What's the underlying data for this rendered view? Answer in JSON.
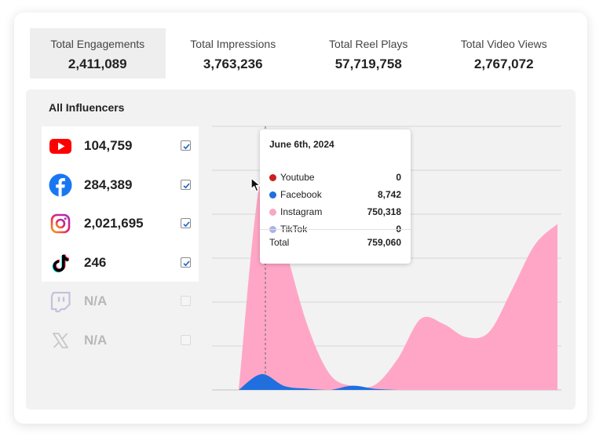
{
  "stats": [
    {
      "label": "Total Engagements",
      "value": "2,411,089"
    },
    {
      "label": "Total Impressions",
      "value": "3,763,236"
    },
    {
      "label": "Total Reel Plays",
      "value": "57,719,758"
    },
    {
      "label": "Total Video Views",
      "value": "2,767,072"
    }
  ],
  "panel": {
    "title": "All Influencers"
  },
  "platforms": [
    {
      "name": "youtube-icon",
      "value": "104,759",
      "checked": true
    },
    {
      "name": "facebook-icon",
      "value": "284,389",
      "checked": true
    },
    {
      "name": "instagram-icon",
      "value": "2,021,695",
      "checked": true
    },
    {
      "name": "tiktok-icon",
      "value": "246",
      "checked": true
    },
    {
      "name": "twitch-icon",
      "value": "N/A",
      "checked": false
    },
    {
      "name": "x-icon",
      "value": "N/A",
      "checked": false
    }
  ],
  "tooltip": {
    "date": "June 6th, 2024",
    "rows": [
      {
        "name": "Youtube",
        "value": "0",
        "color": "#cc1f1f"
      },
      {
        "name": "Facebook",
        "value": "8,742",
        "color": "#1f6fe0"
      },
      {
        "name": "Instagram",
        "value": "750,318",
        "color": "#f7a8c4"
      },
      {
        "name": "TikTok",
        "value": "0",
        "color": "#a9b3e6"
      }
    ],
    "total_label": "Total",
    "total_value": "759,060"
  },
  "colors": {
    "instagram": "#ffa6c6",
    "facebook": "#1f6fe0",
    "grid": "#d6d6d6"
  },
  "chart_data": {
    "type": "area",
    "series": [
      {
        "name": "Instagram",
        "values": [
          0,
          0.81,
          0.55,
          0.25,
          0.06,
          0.015,
          0.02,
          0.12,
          0.27,
          0.25,
          0.2,
          0.22,
          0.38,
          0.55,
          0.63
        ]
      },
      {
        "name": "Facebook",
        "values": [
          0,
          0.06,
          0.015,
          0.005,
          0,
          0.016,
          0.004,
          0,
          0,
          0,
          0,
          0,
          0,
          0,
          0
        ]
      }
    ],
    "grid": true,
    "gridlines": 6,
    "hover_index": 1
  }
}
